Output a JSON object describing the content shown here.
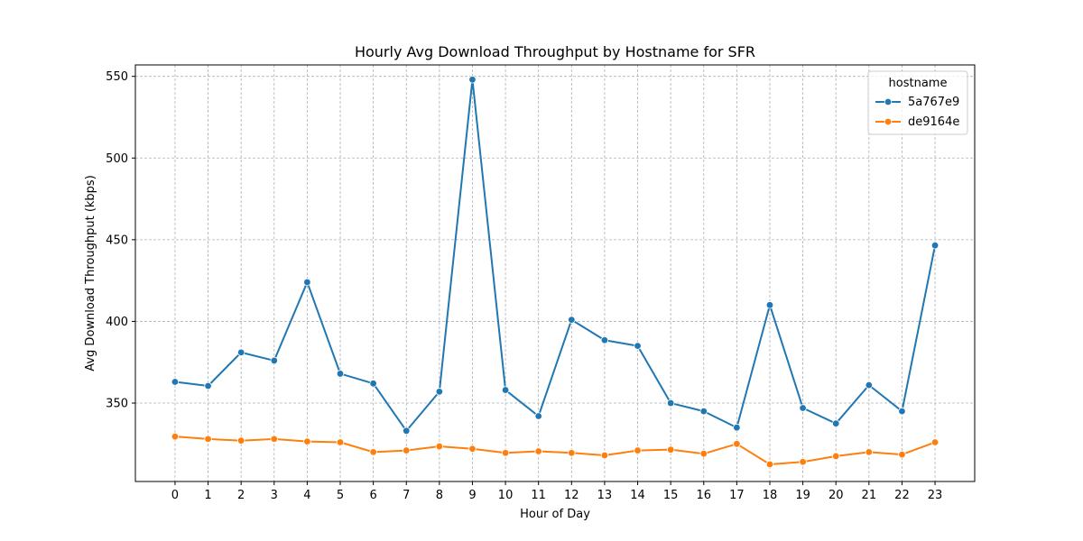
{
  "chart_data": {
    "type": "line",
    "title": "Hourly Avg Download Throughput by Hostname for SFR",
    "xlabel": "Hour of Day",
    "ylabel": "Avg Download Throughput (kbps)",
    "x": [
      0,
      1,
      2,
      3,
      4,
      5,
      6,
      7,
      8,
      9,
      10,
      11,
      12,
      13,
      14,
      15,
      16,
      17,
      18,
      19,
      20,
      21,
      22,
      23
    ],
    "xlim": [
      -1.2,
      24.2
    ],
    "ylim": [
      302,
      557
    ],
    "yticks": [
      350,
      400,
      450,
      500,
      550
    ],
    "grid": true,
    "legend": {
      "title": "hostname",
      "position": "top-right"
    },
    "series": [
      {
        "name": "5a767e9",
        "color": "#1f77b4",
        "values": [
          363,
          360.5,
          381,
          376,
          424,
          368,
          362,
          333,
          357,
          548,
          358,
          342,
          401,
          388.5,
          385,
          350,
          345,
          335,
          410,
          347,
          337.5,
          361,
          345,
          446.5
        ]
      },
      {
        "name": "de9164e",
        "color": "#ff7f0e",
        "values": [
          329.5,
          328,
          327,
          328,
          326.5,
          326,
          320,
          321,
          323.5,
          322,
          319.5,
          320.5,
          319.5,
          318,
          321,
          321.5,
          319,
          325,
          312.5,
          314,
          317.5,
          320,
          318.5,
          326
        ]
      }
    ]
  }
}
